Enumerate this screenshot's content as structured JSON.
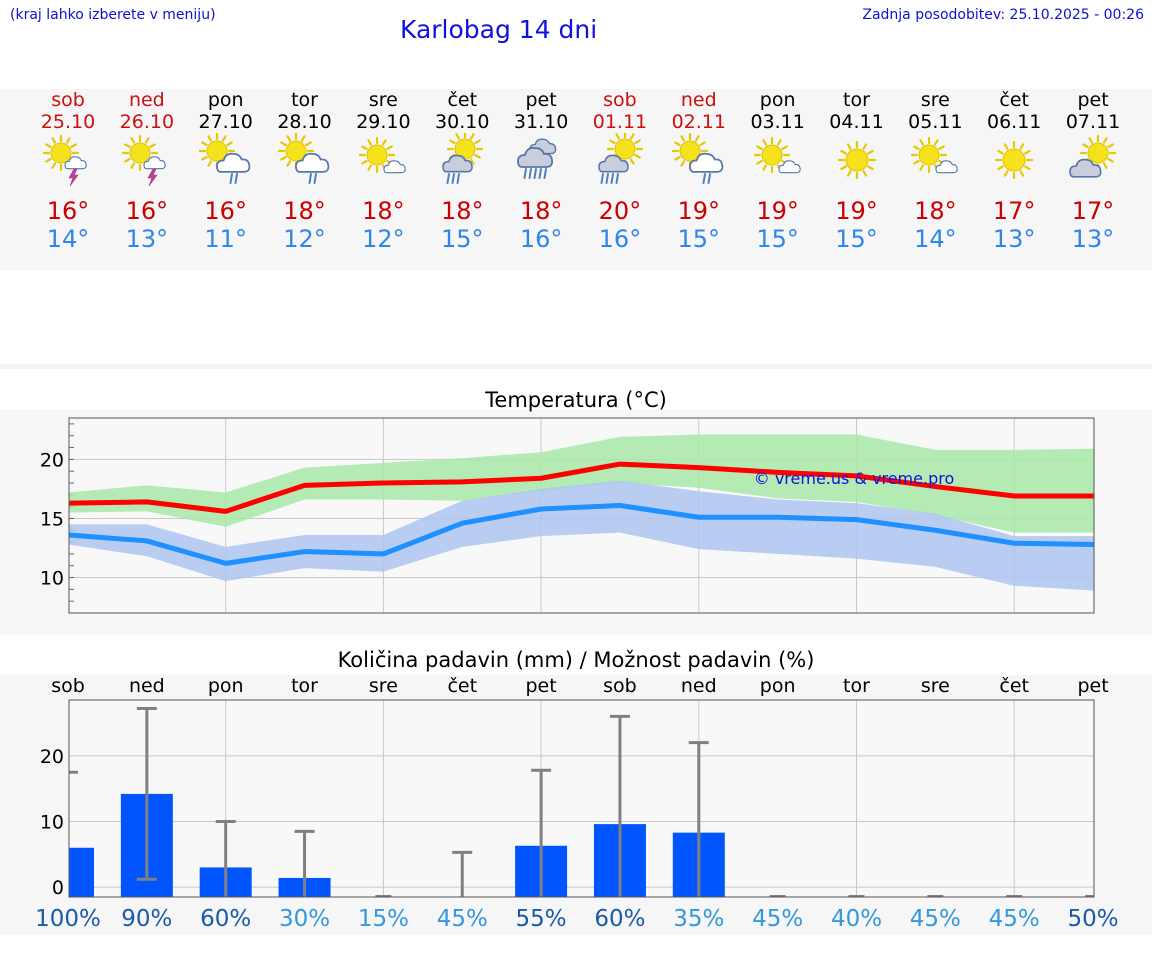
{
  "header": {
    "menu_hint": "(kraj lahko izberete v meniju)",
    "title": "Karlobag 14 dni",
    "last_update": "Zadnja posodobitev: 25.10.2025 - 00:26"
  },
  "colors": {
    "weekend": "#cc1010",
    "max_line": "#ff0000",
    "min_line": "#1e90ff",
    "max_band": "#a8e8a8",
    "min_band": "#adc6f0",
    "overlap": "#7ec8a8",
    "bar": "#0055ff",
    "whisker": "#808080"
  },
  "days": [
    {
      "name": "sob",
      "date": "25.10",
      "weekend": true,
      "icon": "sun-cloud-thunder-icon",
      "tmax": "16°",
      "tmin": "14°"
    },
    {
      "name": "ned",
      "date": "26.10",
      "weekend": true,
      "icon": "sun-cloud-thunder-icon",
      "tmax": "16°",
      "tmin": "13°"
    },
    {
      "name": "pon",
      "date": "27.10",
      "weekend": false,
      "icon": "sun-cloud-rain-icon",
      "tmax": "16°",
      "tmin": "11°"
    },
    {
      "name": "tor",
      "date": "28.10",
      "weekend": false,
      "icon": "sun-cloud-rain-icon",
      "tmax": "18°",
      "tmin": "12°"
    },
    {
      "name": "sre",
      "date": "29.10",
      "weekend": false,
      "icon": "sun-small-cloud-icon",
      "tmax": "18°",
      "tmin": "12°"
    },
    {
      "name": "čet",
      "date": "30.10",
      "weekend": false,
      "icon": "sun-grey-cloud-rain-icon",
      "tmax": "18°",
      "tmin": "15°"
    },
    {
      "name": "pet",
      "date": "31.10",
      "weekend": false,
      "icon": "cloud-heavy-rain-icon",
      "tmax": "18°",
      "tmin": "16°"
    },
    {
      "name": "sob",
      "date": "01.11",
      "weekend": true,
      "icon": "sun-grey-cloud-heavy-rain-icon",
      "tmax": "20°",
      "tmin": "16°"
    },
    {
      "name": "ned",
      "date": "02.11",
      "weekend": true,
      "icon": "sun-cloud-rain-icon",
      "tmax": "19°",
      "tmin": "15°"
    },
    {
      "name": "pon",
      "date": "03.11",
      "weekend": false,
      "icon": "sun-small-cloud-icon",
      "tmax": "19°",
      "tmin": "15°"
    },
    {
      "name": "tor",
      "date": "04.11",
      "weekend": false,
      "icon": "sun-icon",
      "tmax": "19°",
      "tmin": "15°"
    },
    {
      "name": "sre",
      "date": "05.11",
      "weekend": false,
      "icon": "sun-small-cloud-icon",
      "tmax": "18°",
      "tmin": "14°"
    },
    {
      "name": "čet",
      "date": "06.11",
      "weekend": false,
      "icon": "sun-icon",
      "tmax": "17°",
      "tmin": "13°"
    },
    {
      "name": "pet",
      "date": "07.11",
      "weekend": false,
      "icon": "sun-behind-cloud-icon",
      "tmax": "17°",
      "tmin": "13°"
    }
  ],
  "chart_data": [
    {
      "type": "line",
      "title": "Temperatura (°C)",
      "xlabel": "",
      "ylabel": "°C",
      "x": [
        0,
        1,
        2,
        3,
        4,
        5,
        6,
        7,
        8,
        9,
        10,
        11,
        12,
        13
      ],
      "ylim": [
        7,
        23.5
      ],
      "yticks": [
        10,
        15,
        20
      ],
      "watermark": "© vreme.us & vreme.pro",
      "series": [
        {
          "name": "max",
          "values": [
            16.3,
            16.4,
            15.6,
            17.8,
            18.0,
            18.1,
            18.4,
            19.6,
            19.3,
            18.9,
            18.6,
            17.7,
            16.9,
            16.9
          ]
        },
        {
          "name": "max_band_low",
          "values": [
            15.5,
            15.6,
            14.3,
            16.6,
            16.6,
            16.5,
            17.3,
            18.0,
            17.6,
            16.7,
            16.4,
            15.3,
            13.8,
            13.8
          ]
        },
        {
          "name": "max_band_high",
          "values": [
            17.2,
            17.8,
            17.2,
            19.3,
            19.7,
            20.1,
            20.6,
            21.9,
            22.1,
            22.1,
            22.1,
            20.8,
            20.8,
            20.9
          ]
        },
        {
          "name": "min",
          "values": [
            13.6,
            13.1,
            11.2,
            12.2,
            12.0,
            14.6,
            15.8,
            16.1,
            15.1,
            15.1,
            14.9,
            14.0,
            12.9,
            12.8
          ]
        },
        {
          "name": "min_band_low",
          "values": [
            12.8,
            11.8,
            9.7,
            10.8,
            10.5,
            12.6,
            13.5,
            13.8,
            12.4,
            12.0,
            11.6,
            10.9,
            9.3,
            8.9
          ]
        },
        {
          "name": "min_band_high",
          "values": [
            14.5,
            14.5,
            12.6,
            13.6,
            13.6,
            16.5,
            17.5,
            18.2,
            17.3,
            16.6,
            16.3,
            15.4,
            13.5,
            13.5
          ]
        }
      ]
    },
    {
      "type": "bar",
      "title": "Količina padavin (mm) / Možnost padavin (%)",
      "xlabel": "",
      "ylabel": "mm",
      "categories": [
        "sob",
        "ned",
        "pon",
        "tor",
        "sre",
        "čet",
        "pet",
        "sob",
        "ned",
        "pon",
        "tor",
        "sre",
        "čet",
        "pet"
      ],
      "ylim": [
        -1.5,
        28.5
      ],
      "yticks": [
        0,
        10,
        20
      ],
      "series": [
        {
          "name": "amount_mm",
          "values": [
            6.0,
            14.2,
            3.0,
            1.4,
            0.0,
            0.0,
            6.3,
            9.6,
            8.3,
            0.0,
            0.0,
            0.0,
            0.0,
            0.0
          ]
        },
        {
          "name": "whisker_high_mm",
          "values": [
            17.5,
            27.2,
            10.0,
            8.5,
            0.0,
            5.3,
            17.8,
            26.0,
            22.0,
            0.0,
            0.0,
            0.0,
            0.0,
            0.0
          ]
        },
        {
          "name": "whisker_low_mm",
          "values": [
            0.0,
            1.2,
            0.0,
            0.0,
            0.0,
            0.0,
            0.0,
            0.0,
            0.0,
            0.0,
            0.0,
            0.0,
            0.0,
            0.0
          ]
        }
      ],
      "probability": [
        "100%",
        "90%",
        "60%",
        "30%",
        "15%",
        "45%",
        "55%",
        "60%",
        "35%",
        "45%",
        "40%",
        "45%",
        "45%",
        "50%"
      ]
    }
  ]
}
